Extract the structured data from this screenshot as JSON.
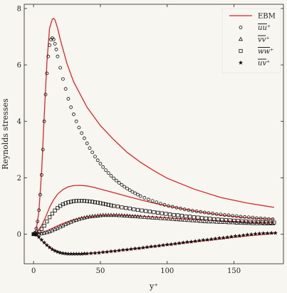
{
  "chart_data": {
    "type": "line",
    "title": "",
    "xlabel": "y⁺",
    "ylabel": "Reynolds stresses",
    "xlim": [
      -7,
      187
    ],
    "ylim": [
      -1.05,
      8.15
    ],
    "x_ticks": [
      0,
      50,
      100,
      150
    ],
    "y_ticks": [
      0,
      2,
      4,
      6,
      8
    ],
    "grid": false,
    "legend_position": "top-right",
    "legend": [
      "EBM",
      "uu⁺",
      "vv⁺",
      "ww⁺",
      "uv⁺"
    ],
    "model_curves": {
      "name": "EBM",
      "color": "#d62728",
      "curves": [
        {
          "component": "uu",
          "x": [
            0,
            2,
            4,
            6,
            8,
            10,
            12,
            14,
            15,
            16,
            18,
            20,
            25,
            30,
            40,
            50,
            60,
            70,
            80,
            90,
            100,
            120,
            140,
            160,
            180
          ],
          "y": [
            0,
            0.15,
            0.8,
            2.2,
            4.2,
            6.1,
            7.3,
            7.62,
            7.65,
            7.6,
            7.3,
            6.9,
            6.05,
            5.4,
            4.5,
            3.85,
            3.35,
            2.9,
            2.55,
            2.25,
            1.98,
            1.6,
            1.3,
            1.1,
            0.95
          ]
        },
        {
          "component": "ww",
          "x": [
            0,
            3,
            6,
            9,
            12,
            15,
            18,
            22,
            26,
            30,
            35,
            40,
            45,
            50,
            60,
            70,
            80,
            90,
            100,
            120,
            140,
            160,
            180
          ],
          "y": [
            0,
            0.1,
            0.3,
            0.6,
            0.95,
            1.22,
            1.42,
            1.58,
            1.68,
            1.72,
            1.73,
            1.71,
            1.66,
            1.6,
            1.47,
            1.34,
            1.22,
            1.1,
            1.0,
            0.82,
            0.68,
            0.58,
            0.53
          ]
        },
        {
          "component": "vv",
          "x": [
            0,
            5,
            10,
            15,
            20,
            25,
            30,
            35,
            40,
            50,
            60,
            70,
            80,
            90,
            100,
            120,
            140,
            160,
            180
          ],
          "y": [
            0,
            0.04,
            0.12,
            0.23,
            0.34,
            0.43,
            0.51,
            0.57,
            0.61,
            0.66,
            0.67,
            0.66,
            0.64,
            0.61,
            0.58,
            0.52,
            0.47,
            0.43,
            0.41
          ]
        },
        {
          "component": "uv",
          "x": [
            0,
            3,
            6,
            10,
            15,
            20,
            25,
            30,
            35,
            40,
            50,
            60,
            70,
            80,
            90,
            100,
            110,
            120,
            130,
            140,
            150,
            160,
            170,
            180
          ],
          "y": [
            0,
            -0.08,
            -0.22,
            -0.4,
            -0.56,
            -0.65,
            -0.69,
            -0.7,
            -0.7,
            -0.69,
            -0.65,
            -0.6,
            -0.55,
            -0.5,
            -0.44,
            -0.38,
            -0.33,
            -0.27,
            -0.22,
            -0.17,
            -0.11,
            -0.06,
            -0.02,
            0.03
          ]
        }
      ]
    },
    "series": [
      {
        "name": "uu⁺",
        "component": "uu",
        "marker": "circle",
        "x": [
          0,
          1,
          2,
          3,
          4,
          5,
          6,
          7,
          8,
          9,
          10,
          11,
          12,
          13,
          14,
          15,
          16,
          17,
          18,
          20,
          22,
          24,
          26,
          28,
          30,
          32,
          34,
          36,
          38,
          40,
          42,
          44,
          46,
          48,
          50,
          52,
          54,
          56,
          58,
          60,
          62,
          64,
          66,
          68,
          70,
          72,
          74,
          76,
          78,
          80,
          83,
          86,
          89,
          92,
          95,
          98,
          101,
          104,
          107,
          110,
          113,
          116,
          119,
          122,
          125,
          128,
          131,
          134,
          137,
          140,
          143,
          146,
          149,
          152,
          155,
          158,
          161,
          164,
          167,
          170,
          173,
          176,
          179
        ],
        "y": [
          0,
          0.05,
          0.2,
          0.45,
          0.85,
          1.4,
          2.1,
          3.0,
          4.0,
          4.95,
          5.7,
          6.3,
          6.7,
          6.9,
          6.95,
          6.9,
          6.75,
          6.55,
          6.3,
          5.9,
          5.5,
          5.15,
          4.8,
          4.5,
          4.25,
          4.0,
          3.78,
          3.58,
          3.4,
          3.22,
          3.05,
          2.9,
          2.75,
          2.62,
          2.5,
          2.38,
          2.27,
          2.17,
          2.07,
          1.98,
          1.9,
          1.82,
          1.75,
          1.68,
          1.62,
          1.56,
          1.5,
          1.45,
          1.4,
          1.35,
          1.29,
          1.23,
          1.18,
          1.13,
          1.08,
          1.04,
          1.0,
          0.97,
          0.94,
          0.91,
          0.88,
          0.85,
          0.83,
          0.81,
          0.79,
          0.77,
          0.75,
          0.73,
          0.71,
          0.7,
          0.68,
          0.67,
          0.65,
          0.64,
          0.62,
          0.61,
          0.6,
          0.59,
          0.57,
          0.56,
          0.55,
          0.54,
          0.53
        ]
      },
      {
        "name": "vv⁺",
        "component": "vv",
        "marker": "triangle",
        "x": [
          0,
          2,
          4,
          6,
          8,
          10,
          12,
          14,
          16,
          18,
          20,
          22,
          24,
          26,
          28,
          30,
          32,
          34,
          36,
          38,
          40,
          42,
          44,
          46,
          48,
          50,
          52,
          54,
          56,
          58,
          60,
          62,
          64,
          66,
          68,
          70,
          72,
          74,
          76,
          78,
          80,
          83,
          86,
          89,
          92,
          95,
          98,
          101,
          104,
          107,
          110,
          113,
          116,
          119,
          122,
          125,
          128,
          131,
          134,
          137,
          140,
          143,
          146,
          149,
          152,
          155,
          158,
          161,
          164,
          167,
          170,
          173,
          176,
          179
        ],
        "y": [
          0,
          0.0,
          0.01,
          0.02,
          0.04,
          0.06,
          0.09,
          0.13,
          0.17,
          0.21,
          0.26,
          0.3,
          0.35,
          0.39,
          0.43,
          0.47,
          0.5,
          0.53,
          0.56,
          0.58,
          0.6,
          0.62,
          0.63,
          0.64,
          0.65,
          0.66,
          0.67,
          0.67,
          0.67,
          0.67,
          0.67,
          0.67,
          0.66,
          0.66,
          0.65,
          0.65,
          0.64,
          0.63,
          0.63,
          0.62,
          0.61,
          0.6,
          0.59,
          0.58,
          0.57,
          0.56,
          0.55,
          0.54,
          0.53,
          0.52,
          0.51,
          0.5,
          0.49,
          0.48,
          0.47,
          0.46,
          0.45,
          0.44,
          0.44,
          0.43,
          0.42,
          0.42,
          0.41,
          0.41,
          0.4,
          0.4,
          0.39,
          0.39,
          0.38,
          0.38,
          0.38,
          0.37,
          0.37,
          0.37
        ]
      },
      {
        "name": "ww⁺",
        "component": "ww",
        "marker": "square",
        "x": [
          0,
          2,
          4,
          6,
          8,
          10,
          12,
          14,
          16,
          18,
          20,
          22,
          24,
          26,
          28,
          30,
          32,
          34,
          36,
          38,
          40,
          42,
          44,
          46,
          48,
          50,
          52,
          54,
          56,
          58,
          60,
          63,
          66,
          69,
          72,
          75,
          78,
          81,
          84,
          87,
          90,
          93,
          96,
          99,
          102,
          105,
          108,
          111,
          114,
          117,
          120,
          123,
          126,
          129,
          132,
          135,
          138,
          141,
          144,
          147,
          150,
          153,
          156,
          159,
          162,
          165,
          168,
          171,
          174,
          177,
          180
        ],
        "y": [
          0,
          0.02,
          0.08,
          0.18,
          0.3,
          0.45,
          0.6,
          0.73,
          0.84,
          0.93,
          1.0,
          1.06,
          1.1,
          1.13,
          1.15,
          1.17,
          1.18,
          1.18,
          1.18,
          1.18,
          1.17,
          1.16,
          1.15,
          1.13,
          1.12,
          1.1,
          1.08,
          1.06,
          1.04,
          1.02,
          1.0,
          0.98,
          0.95,
          0.93,
          0.91,
          0.88,
          0.86,
          0.84,
          0.82,
          0.8,
          0.78,
          0.76,
          0.74,
          0.72,
          0.7,
          0.68,
          0.67,
          0.65,
          0.63,
          0.62,
          0.6,
          0.59,
          0.57,
          0.56,
          0.55,
          0.53,
          0.52,
          0.51,
          0.5,
          0.49,
          0.48,
          0.47,
          0.46,
          0.45,
          0.44,
          0.44,
          0.43,
          0.42,
          0.42,
          0.41,
          0.41
        ]
      },
      {
        "name": "uv⁺",
        "component": "uv",
        "marker": "star",
        "x": [
          0,
          2,
          4,
          6,
          8,
          10,
          12,
          14,
          16,
          18,
          20,
          22,
          24,
          26,
          28,
          30,
          32,
          34,
          36,
          38,
          40,
          43,
          46,
          49,
          52,
          55,
          58,
          61,
          64,
          67,
          70,
          73,
          76,
          79,
          82,
          85,
          88,
          91,
          94,
          97,
          100,
          103,
          106,
          109,
          112,
          115,
          118,
          121,
          124,
          127,
          130,
          133,
          136,
          139,
          142,
          145,
          148,
          151,
          154,
          157,
          160,
          163,
          166,
          169,
          172,
          175,
          178,
          181
        ],
        "y": [
          0,
          -0.03,
          -0.1,
          -0.2,
          -0.3,
          -0.39,
          -0.47,
          -0.54,
          -0.59,
          -0.63,
          -0.66,
          -0.68,
          -0.69,
          -0.7,
          -0.7,
          -0.7,
          -0.7,
          -0.7,
          -0.7,
          -0.69,
          -0.69,
          -0.68,
          -0.67,
          -0.66,
          -0.64,
          -0.63,
          -0.61,
          -0.6,
          -0.58,
          -0.56,
          -0.55,
          -0.53,
          -0.51,
          -0.5,
          -0.48,
          -0.46,
          -0.44,
          -0.43,
          -0.41,
          -0.39,
          -0.37,
          -0.36,
          -0.34,
          -0.32,
          -0.3,
          -0.28,
          -0.27,
          -0.25,
          -0.23,
          -0.21,
          -0.2,
          -0.18,
          -0.16,
          -0.14,
          -0.13,
          -0.11,
          -0.09,
          -0.07,
          -0.06,
          -0.04,
          -0.02,
          -0.01,
          0.01,
          0.02,
          0.03,
          0.03,
          0.04,
          0.04
        ]
      }
    ]
  }
}
